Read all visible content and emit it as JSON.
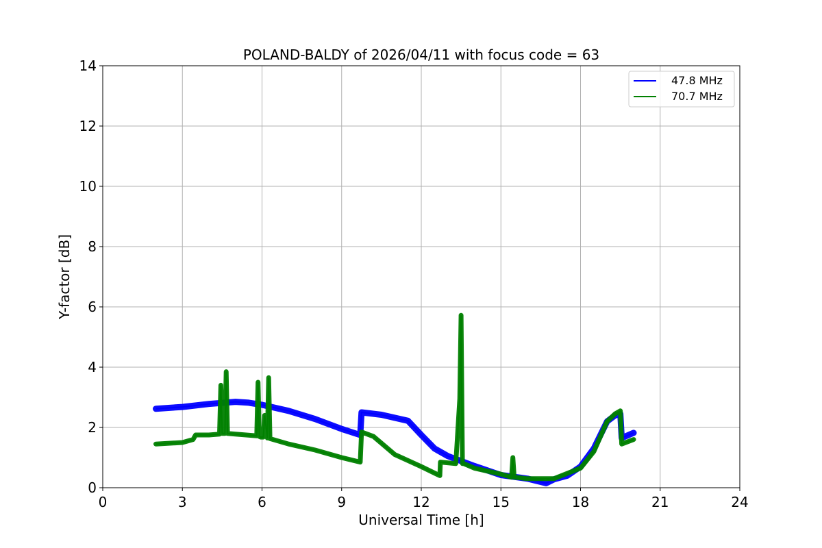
{
  "chart_data": {
    "type": "line",
    "title": "POLAND-BALDY of 2026/04/11 with focus code = 63",
    "xlabel": "Universal Time [h]",
    "ylabel": "Y-factor [dB]",
    "xlim": [
      0,
      24
    ],
    "ylim": [
      0,
      14
    ],
    "xticks": [
      0,
      3,
      6,
      9,
      12,
      15,
      18,
      21,
      24
    ],
    "yticks": [
      0,
      2,
      4,
      6,
      8,
      10,
      12,
      14
    ],
    "grid": true,
    "legend_position": "top-right",
    "series": [
      {
        "name": "47.8 MHz",
        "color": "#0000ff",
        "x": [
          2.0,
          3.0,
          4.0,
          5.0,
          5.5,
          6.0,
          7.0,
          8.0,
          9.0,
          9.7,
          9.75,
          10.5,
          11.5,
          12.0,
          12.5,
          13.0,
          14.0,
          15.0,
          16.0,
          16.7,
          17.0,
          17.5,
          18.0,
          18.5,
          19.0,
          19.3,
          19.5,
          19.55,
          20.0
        ],
        "y": [
          2.62,
          2.68,
          2.78,
          2.85,
          2.82,
          2.75,
          2.55,
          2.28,
          1.95,
          1.75,
          2.5,
          2.42,
          2.22,
          1.75,
          1.3,
          1.05,
          0.72,
          0.42,
          0.3,
          0.15,
          0.28,
          0.4,
          0.7,
          1.3,
          2.2,
          2.4,
          2.45,
          1.65,
          1.82
        ]
      },
      {
        "name": "70.7 MHz",
        "color": "#008000",
        "x": [
          2.0,
          3.0,
          3.4,
          3.5,
          4.0,
          4.4,
          4.45,
          4.5,
          4.6,
          4.65,
          4.7,
          5.0,
          5.8,
          5.85,
          5.9,
          5.95,
          6.05,
          6.1,
          6.2,
          6.25,
          6.3,
          7.0,
          8.0,
          9.0,
          9.7,
          9.75,
          10.2,
          11.0,
          12.0,
          12.7,
          12.72,
          13.3,
          13.45,
          13.5,
          13.55,
          13.6,
          14.0,
          15.0,
          15.4,
          15.45,
          15.5,
          16.0,
          17.0,
          18.0,
          18.5,
          19.0,
          19.3,
          19.5,
          19.55,
          20.0
        ],
        "y": [
          1.45,
          1.5,
          1.6,
          1.75,
          1.75,
          1.78,
          3.4,
          1.8,
          1.8,
          3.85,
          1.8,
          1.78,
          1.72,
          3.5,
          1.7,
          1.68,
          1.68,
          2.4,
          1.65,
          3.65,
          1.63,
          1.45,
          1.25,
          1.0,
          0.85,
          1.85,
          1.7,
          1.1,
          0.7,
          0.4,
          0.85,
          0.8,
          2.95,
          5.72,
          0.8,
          0.8,
          0.65,
          0.45,
          0.35,
          1.0,
          0.35,
          0.3,
          0.3,
          0.65,
          1.2,
          2.2,
          2.45,
          2.55,
          1.45,
          1.6
        ]
      }
    ]
  }
}
